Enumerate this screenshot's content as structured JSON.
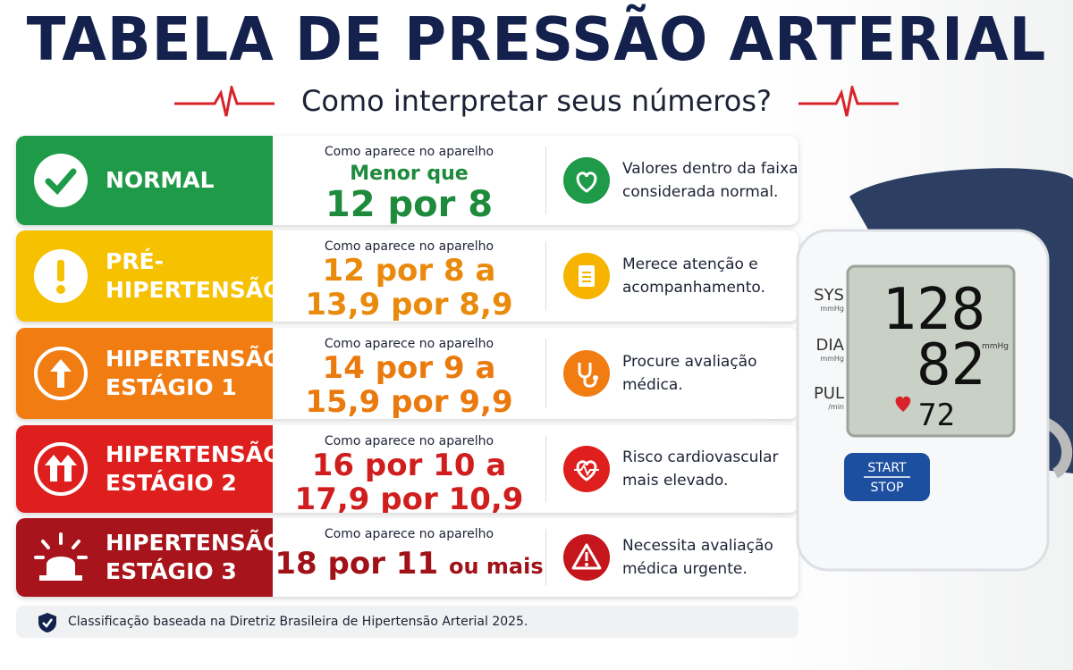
{
  "title": "TABELA DE PRESSÃO ARTERIAL",
  "subtitle": "Como interpretar seus números?",
  "rows": [
    {
      "category": [
        "NORMAL"
      ],
      "device_label": "Como aparece no aparelho",
      "range": [
        "Menor que",
        "12 por 8"
      ],
      "description": [
        "Valores dentro da faixa",
        "considerada normal."
      ]
    },
    {
      "category": [
        "PRÉ-",
        "HIPERTENSÃO"
      ],
      "device_label": "Como aparece no aparelho",
      "range": [
        "12 por 8 a",
        "13,9 por 8,9"
      ],
      "description": [
        "Merece atenção e",
        "acompanhamento."
      ]
    },
    {
      "category": [
        "HIPERTENSÃO",
        "ESTÁGIO 1"
      ],
      "device_label": "Como aparece no aparelho",
      "range": [
        "14 por 9 a",
        "15,9 por 9,9"
      ],
      "description": [
        "Procure avaliação",
        "médica."
      ]
    },
    {
      "category": [
        "HIPERTENSÃO",
        "ESTÁGIO 2"
      ],
      "device_label": "Como aparece no aparelho",
      "range": [
        "16 por 10 a",
        "17,9 por 10,9"
      ],
      "description": [
        "Risco cardiovascular",
        "mais elevado."
      ]
    },
    {
      "category": [
        "HIPERTENSÃO",
        "ESTÁGIO 3"
      ],
      "device_label": "Como aparece no aparelho",
      "range": [
        "18 por 11",
        "ou mais"
      ],
      "description": [
        "Necessita avaliação",
        "médica urgente."
      ]
    }
  ],
  "footnote": "Classificação baseada na Diretriz Brasileira de Hipertensão Arterial 2025.",
  "monitor": {
    "sys_label": "SYS",
    "sys_unit": "mmHg",
    "dia_label": "DIA",
    "dia_unit": "mmHg",
    "pul_label": "PUL",
    "pul_unit": "/min",
    "sys": "128",
    "dia": "82",
    "pul": "72",
    "screen_unit": "mmHg",
    "button": [
      "START",
      "STOP"
    ]
  }
}
